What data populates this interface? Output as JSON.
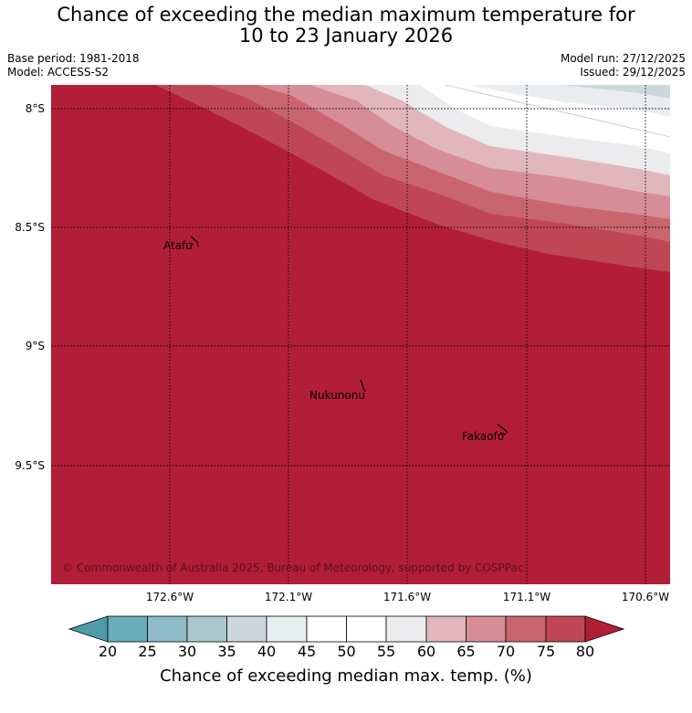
{
  "title_line1": "Chance of exceeding the median maximum temperature for",
  "title_line2": "10 to 23 January 2026",
  "meta": {
    "base_period": "Base period: 1981-2018",
    "model": "Model: ACCESS-S2",
    "model_run": "Model run: 27/12/2025",
    "issued": "Issued: 29/12/2025"
  },
  "latitude_labels": [
    "8°S",
    "8.5°S",
    "9°S",
    "9.5°S"
  ],
  "longitude_labels": [
    "172.6°W",
    "172.1°W",
    "171.6°W",
    "171.1°W",
    "170.6°W"
  ],
  "places": {
    "atafu": "Atafu",
    "nukunonu": "Nukunonu",
    "fakaofo": "Fakaofo"
  },
  "copyright": "© Commonwealth of Australia 2025, Bureau of Meteorology, supported by COSPPac",
  "colorbar": {
    "title": "Chance of exceeding median max. temp. (%)",
    "ticks": [
      "20",
      "25",
      "30",
      "35",
      "40",
      "45",
      "50",
      "55",
      "60",
      "65",
      "70",
      "75",
      "80"
    ],
    "colors": {
      "under": "#4f9aa8",
      "c20_25": "#69adbb",
      "c25_30": "#8dbac4",
      "c30_35": "#a9c7cc",
      "c35_40": "#ccd8dc",
      "c40_45": "#e8eef0",
      "c45_50": "#ffffff",
      "c50_55": "#ffffff",
      "c55_60": "#ececee",
      "c60_65": "#e1b7bc",
      "c65_70": "#d68d96",
      "c70_75": "#c9656f",
      "c75_80": "#bf4755",
      "over": "#b21e38"
    }
  }
}
